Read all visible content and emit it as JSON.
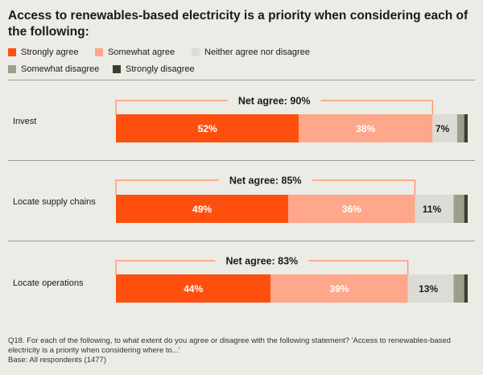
{
  "title": "Access to renewables-based electricity is a priority when considering each of the following:",
  "legend": [
    {
      "label": "Strongly agree",
      "color": "#ff4f0f"
    },
    {
      "label": "Somewhat agree",
      "color": "#ffa78a"
    },
    {
      "label": "Neither agree nor disagree",
      "color": "#dcdbd6"
    },
    {
      "label": "Somewhat disagree",
      "color": "#9aa08a"
    },
    {
      "label": "Strongly disagree",
      "color": "#3b3f32"
    }
  ],
  "chart_data": {
    "type": "bar",
    "orientation": "horizontal",
    "stacked": true,
    "categories": [
      "Invest",
      "Locate supply chains",
      "Locate operations"
    ],
    "series": [
      {
        "name": "Strongly agree",
        "values": [
          52,
          49,
          44
        ],
        "labels": [
          "52%",
          "49%",
          "44%"
        ],
        "color": "#ff4f0f"
      },
      {
        "name": "Somewhat agree",
        "values": [
          38,
          36,
          39
        ],
        "labels": [
          "38%",
          "36%",
          "39%"
        ],
        "color": "#ffa78a"
      },
      {
        "name": "Neither agree nor disagree",
        "values": [
          7,
          11,
          13
        ],
        "labels": [
          "7%",
          "11%",
          "13%"
        ],
        "color": "#dcdbd6"
      },
      {
        "name": "Somewhat disagree",
        "values": [
          2,
          3,
          3
        ],
        "color": "#9aa08a"
      },
      {
        "name": "Strongly disagree",
        "values": [
          1,
          1,
          1
        ],
        "color": "#3b3f32"
      }
    ],
    "net_agree": [
      "Net agree: 90%",
      "Net agree: 85%",
      "Net agree: 83%"
    ],
    "xlim": [
      0,
      100
    ]
  },
  "footnote": {
    "question": "Q18. For each of the following, to what extent do you agree or disagree with the following statement? 'Access to renewables-based electricity is a priority when considering where to...'",
    "base": "Base: All respondents (1477)"
  }
}
